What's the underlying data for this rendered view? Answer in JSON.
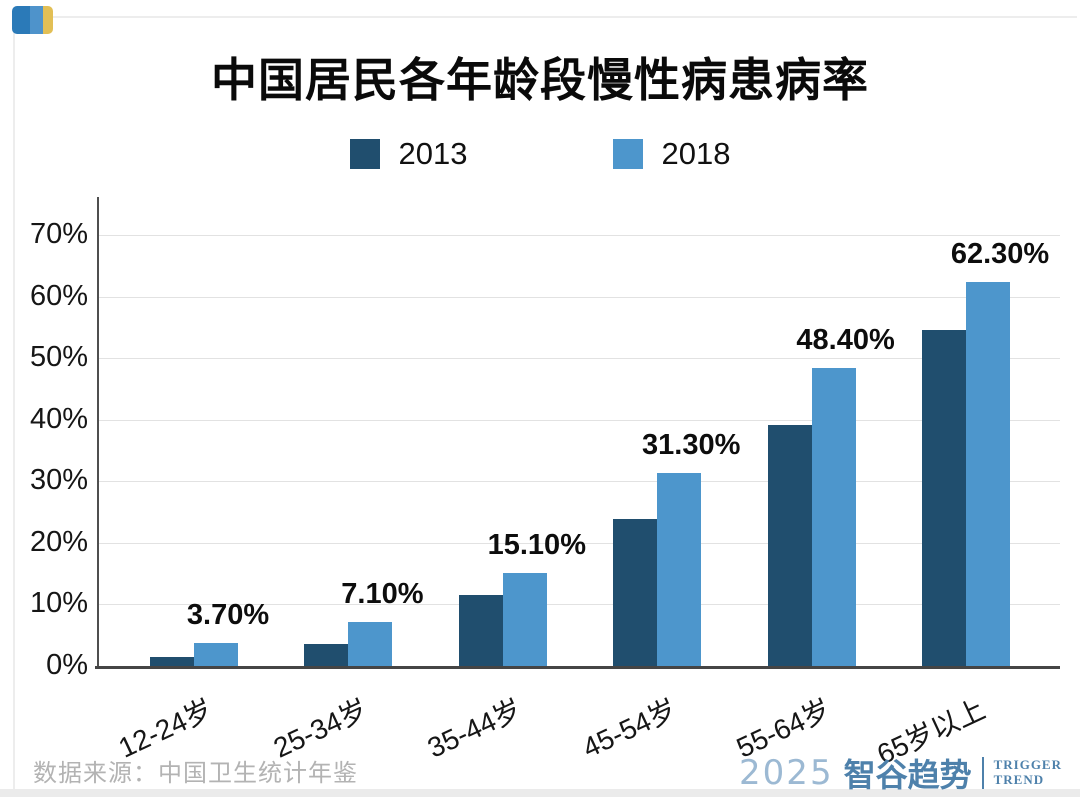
{
  "chart_data": {
    "type": "bar",
    "title": "中国居民各年龄段慢性病患病率",
    "categories": [
      "12-24岁",
      "25-34岁",
      "35-44岁",
      "45-54岁",
      "55-64岁",
      "65岁以上"
    ],
    "series": [
      {
        "name": "2013",
        "color": "#204e6e",
        "values": [
          1.5,
          3.6,
          11.5,
          23.9,
          39.1,
          54.5
        ]
      },
      {
        "name": "2018",
        "color": "#4d96cc",
        "values": [
          3.7,
          7.1,
          15.1,
          31.3,
          48.4,
          62.3
        ],
        "labels": [
          "3.70%",
          "7.10%",
          "15.10%",
          "31.30%",
          "48.40%",
          "62.30%"
        ]
      }
    ],
    "ylim": [
      0,
      70
    ],
    "yticks": [
      "0%",
      "10%",
      "20%",
      "30%",
      "40%",
      "50%",
      "60%",
      "70%"
    ],
    "grid": true,
    "legend_position": "top-center"
  },
  "brand_mark": {
    "name": "zhigu-trend-mark",
    "colors": [
      "#2b7ab8",
      "#4e93cb",
      "#e2bf55"
    ]
  },
  "footer": {
    "source": "数据来源：中国卫生统计年鉴",
    "brand": {
      "year": "2025",
      "name": "智谷趋势",
      "tagline_line1": "TRIGGER",
      "tagline_line2": "TREND"
    }
  }
}
